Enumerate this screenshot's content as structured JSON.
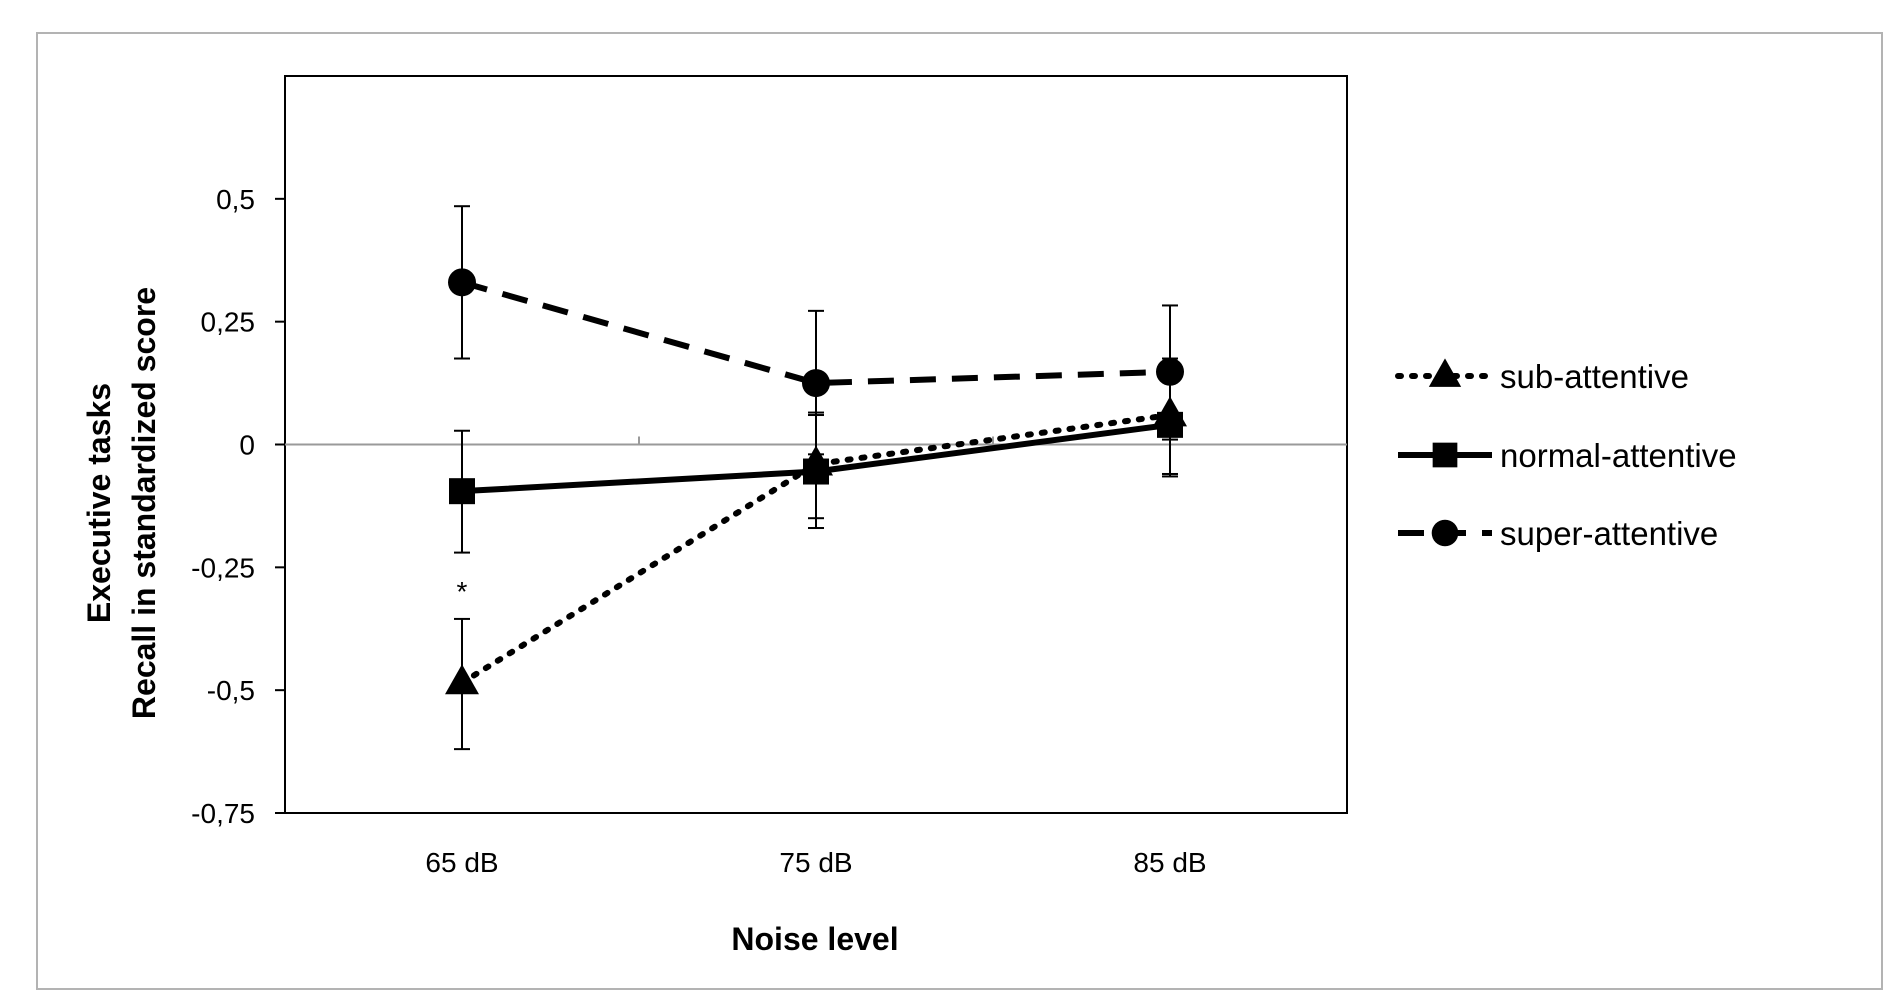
{
  "chart_data": {
    "type": "line",
    "title": "",
    "xlabel": "Noise level",
    "ylabel_lines": [
      "Executive tasks",
      "Recall in standardized score"
    ],
    "categories": [
      "65 dB",
      "75 dB",
      "85 dB"
    ],
    "ylim": [
      -0.75,
      0.75
    ],
    "yticks": [
      0.5,
      0.25,
      0,
      -0.25,
      -0.5,
      -0.75
    ],
    "ytick_labels": [
      "0,5",
      "0,25",
      "0",
      "-0,25",
      "-0,5",
      "-0,75"
    ],
    "grid": false,
    "zero_line": true,
    "legend_position": "right",
    "series": [
      {
        "name": "sub-attentive",
        "line_style": "dotted",
        "marker": "triangle",
        "values": [
          -0.485,
          -0.04,
          0.06
        ],
        "error_low": [
          -0.62,
          -0.15,
          -0.06
        ],
        "error_high": [
          -0.355,
          0.065,
          0.175
        ]
      },
      {
        "name": "normal-attentive",
        "line_style": "solid",
        "marker": "square",
        "values": [
          -0.095,
          -0.055,
          0.04
        ],
        "error_low": [
          -0.22,
          -0.17,
          -0.065
        ],
        "error_high": [
          0.028,
          0.06,
          0.145
        ]
      },
      {
        "name": "super-attentive",
        "line_style": "dashed",
        "marker": "circle",
        "values": [
          0.33,
          0.125,
          0.148
        ],
        "error_low": [
          0.175,
          -0.02,
          0.01
        ],
        "error_high": [
          0.485,
          0.272,
          0.283
        ]
      }
    ],
    "annotations": [
      {
        "text": "*",
        "x": "65 dB",
        "y": -0.29
      }
    ]
  }
}
